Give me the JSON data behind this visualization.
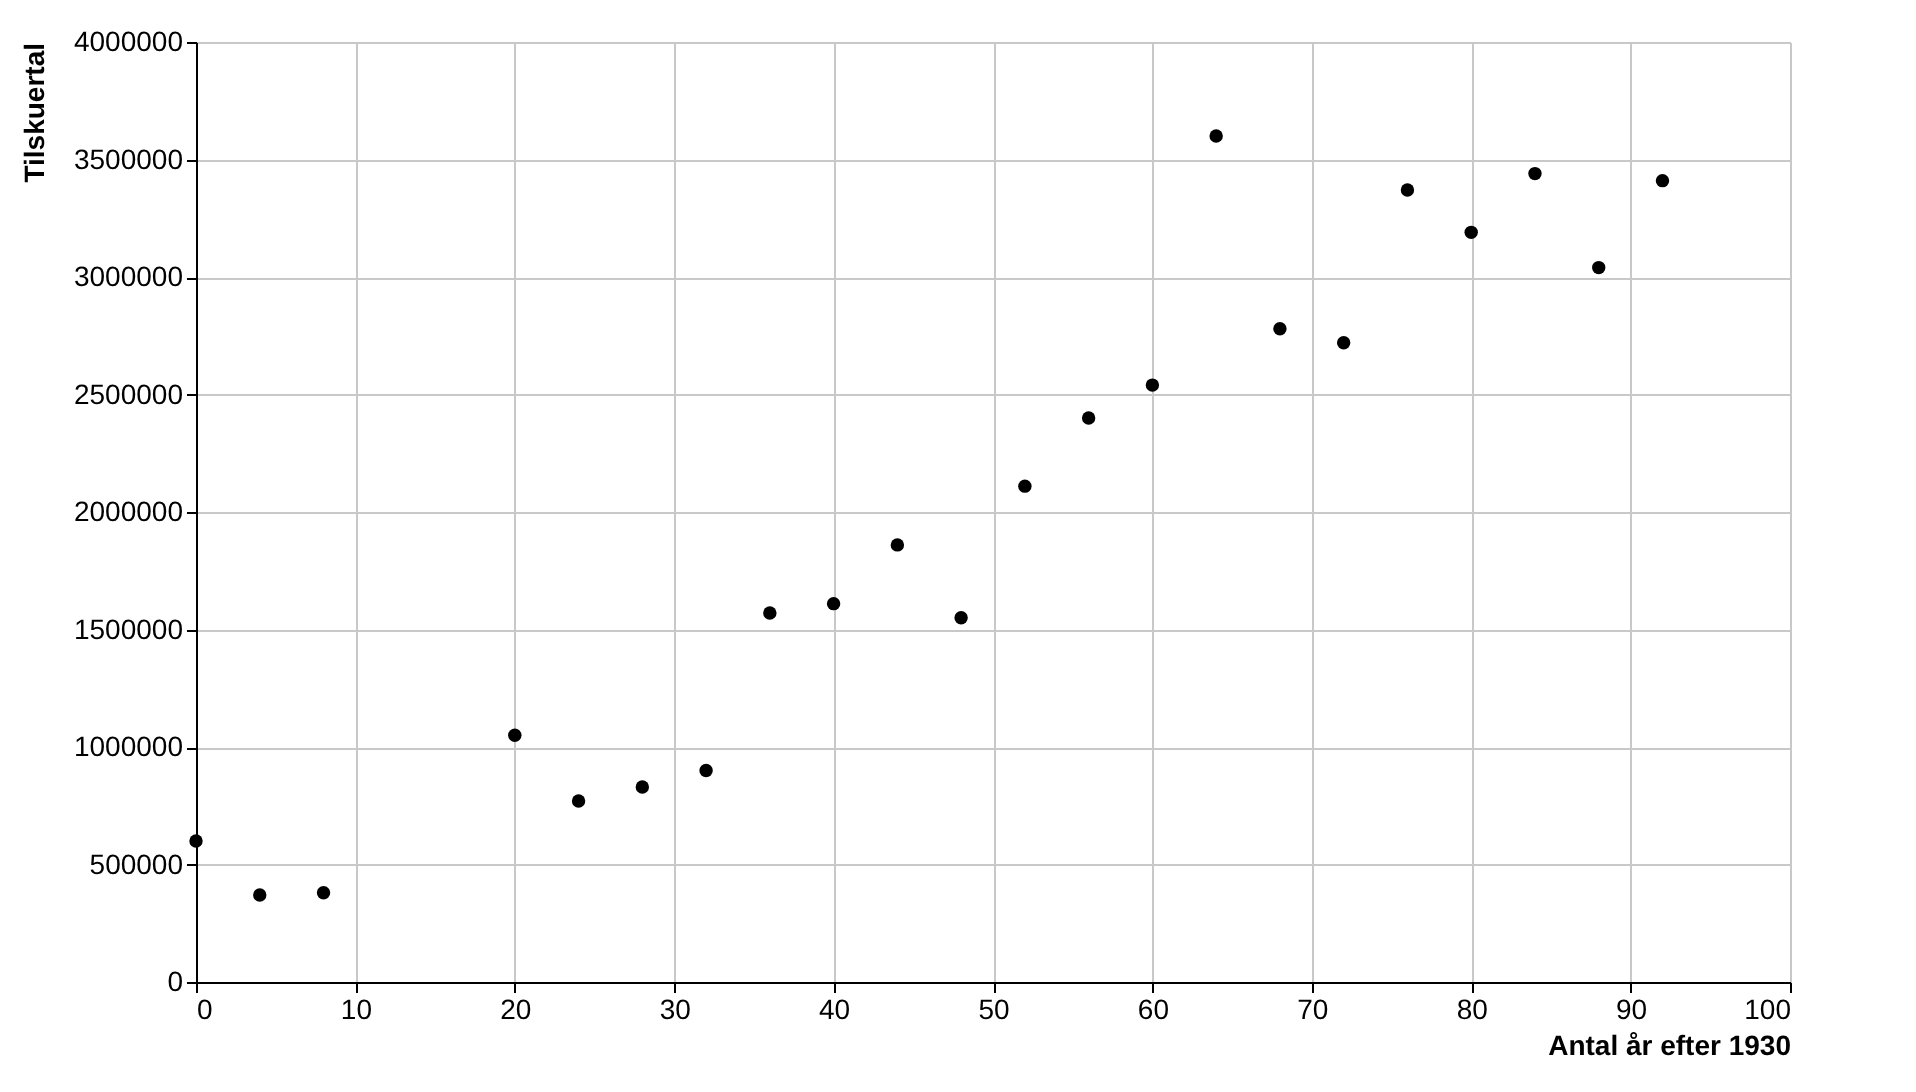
{
  "chart_data": {
    "type": "scatter",
    "xlabel": "Antal år efter 1930",
    "ylabel": "Tilskuertal",
    "x": [
      0,
      4,
      8,
      20,
      24,
      28,
      32,
      36,
      40,
      44,
      48,
      52,
      56,
      60,
      64,
      68,
      72,
      76,
      80,
      84,
      88,
      92
    ],
    "series": [
      {
        "color": "#000000",
        "values": [
          600000,
          370000,
          380000,
          1050000,
          770000,
          830000,
          900000,
          1570000,
          1610000,
          1860000,
          1550000,
          2110000,
          2400000,
          2540000,
          3600000,
          2780000,
          2720000,
          3370000,
          3190000,
          3440000,
          3040000,
          3410000
        ]
      }
    ],
    "xlim": [
      0,
      100
    ],
    "xticks": [
      0,
      10,
      20,
      30,
      40,
      50,
      60,
      70,
      80,
      90,
      100
    ],
    "ylim": [
      0,
      4000000
    ],
    "yticks": [
      0,
      500000,
      1000000,
      1500000,
      2000000,
      2500000,
      3000000,
      3500000,
      4000000
    ],
    "grid": true,
    "marker": "circle",
    "legend": false
  }
}
